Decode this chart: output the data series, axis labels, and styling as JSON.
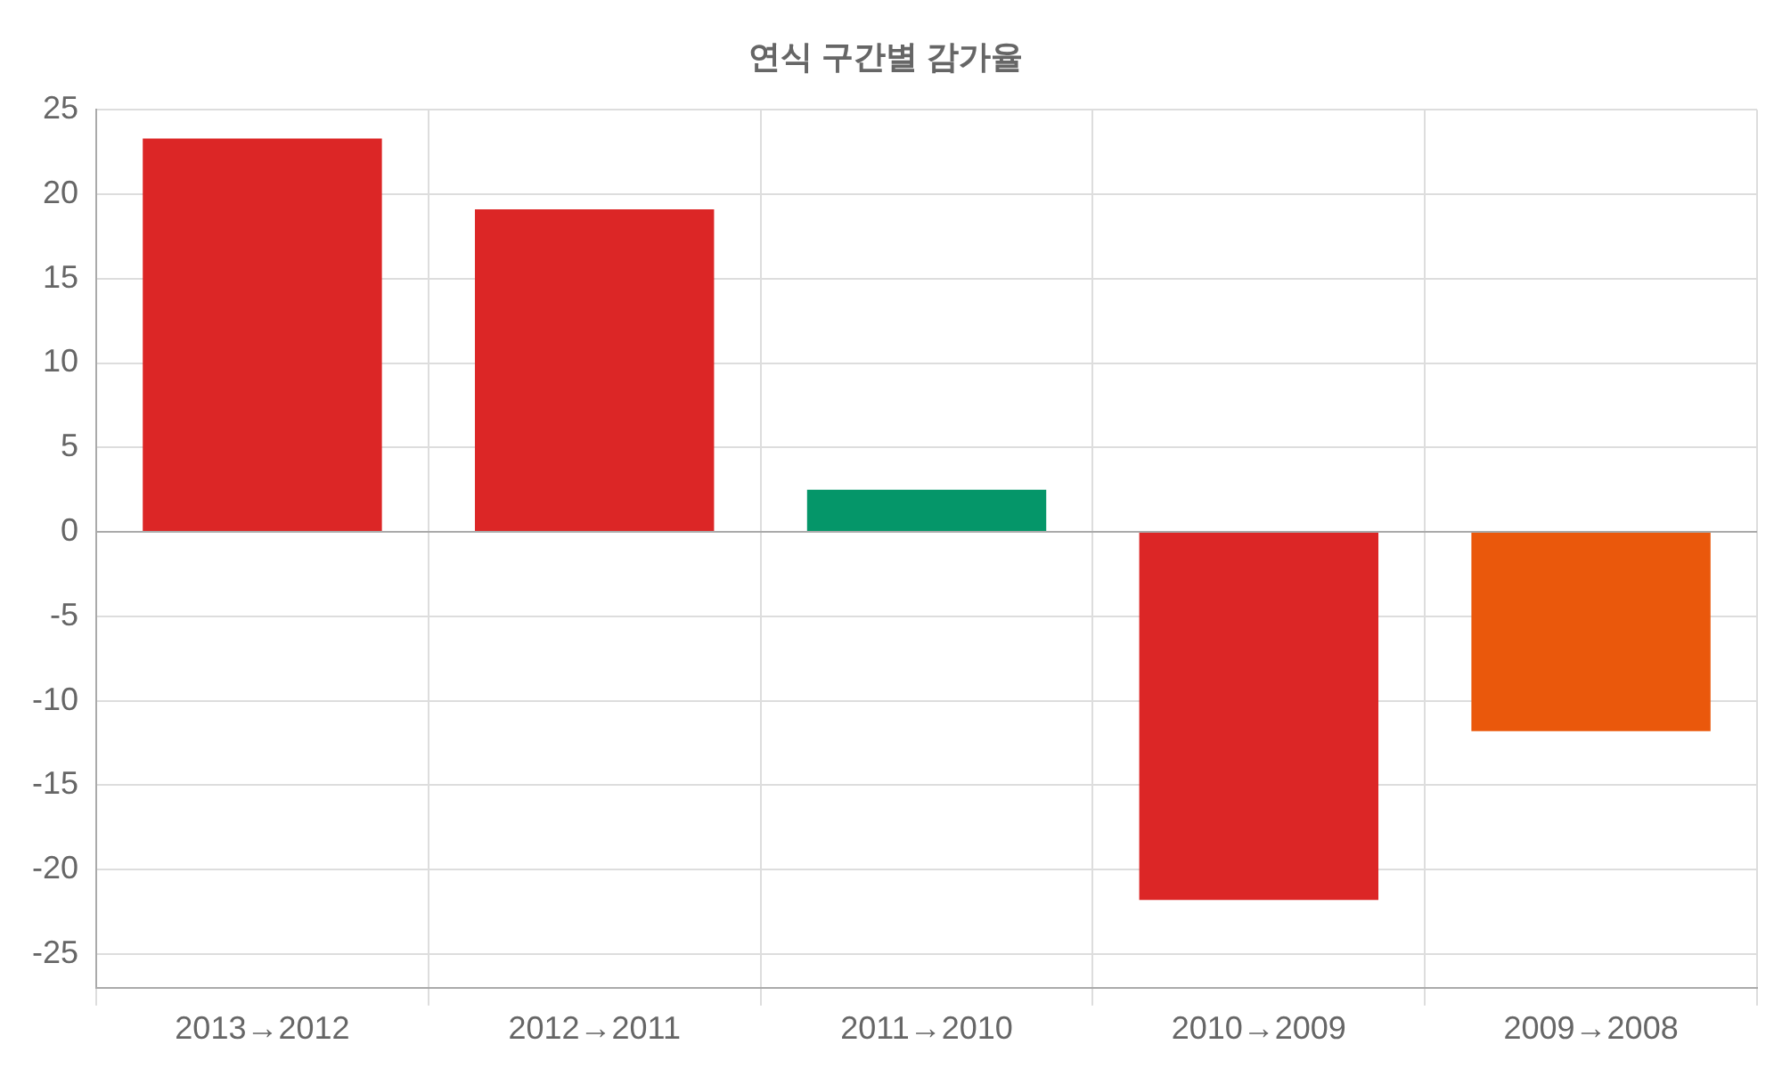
{
  "chart_data": {
    "type": "bar",
    "title": "연식 구간별 감가율",
    "categories": [
      "2013→2012",
      "2012→2011",
      "2011→2010",
      "2010→2009",
      "2009→2008"
    ],
    "values": [
      23.3,
      19.1,
      2.5,
      -21.8,
      -11.8
    ],
    "colors": [
      "#dc2626",
      "#dc2626",
      "#059669",
      "#dc2626",
      "#ea580c"
    ],
    "ylim": [
      -27,
      25
    ],
    "yticks": [
      -25,
      -20,
      -15,
      -10,
      -5,
      0,
      5,
      10,
      15,
      20,
      25
    ],
    "grid": true
  }
}
